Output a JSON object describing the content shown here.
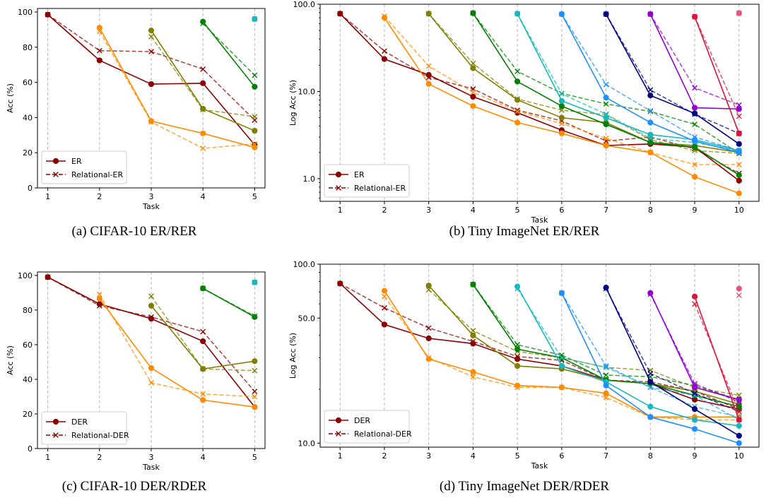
{
  "chart_data": [
    {
      "type": "line",
      "caption": "(a) CIFAR-10 ER/RER",
      "xlabel": "Task",
      "ylabel": "Acc (%)",
      "scale": "linear",
      "xlim": [
        0.8,
        5.2
      ],
      "ylim": [
        0,
        102
      ],
      "xticks": [
        1,
        2,
        3,
        4,
        5
      ],
      "yticks": [
        0,
        20,
        40,
        60,
        80,
        100
      ],
      "ytick_labels": [
        "0",
        "20",
        "40",
        "60",
        "80",
        "100"
      ],
      "legend": {
        "position": "lower-left",
        "solid": "ER",
        "dashed": "Relational-ER"
      },
      "grid": "vertical dashed",
      "series": [
        {
          "color": "#8b0000",
          "x": [
            1,
            2,
            3,
            4,
            5
          ],
          "solid": [
            98.5,
            72.5,
            59,
            59.5,
            24.5
          ],
          "dashed": [
            98.5,
            78,
            77.5,
            67.5,
            38.5
          ]
        },
        {
          "color": "#ff8c00",
          "x": [
            2,
            3,
            4,
            5
          ],
          "solid": [
            91,
            38,
            31,
            23
          ],
          "dashed": [
            89,
            37.5,
            22.5,
            25
          ]
        },
        {
          "color": "#808000",
          "x": [
            3,
            4,
            5
          ],
          "solid": [
            89.5,
            45,
            32.5
          ],
          "dashed": [
            86,
            44.5,
            40.5
          ]
        },
        {
          "color": "#008000",
          "x": [
            4,
            5
          ],
          "solid": [
            94.5,
            57.5
          ],
          "dashed": [
            93.5,
            64
          ]
        },
        {
          "color": "#17b8be",
          "x": [
            5
          ],
          "solid": [
            96
          ],
          "dashed": [
            96
          ]
        }
      ]
    },
    {
      "type": "line",
      "caption": "(b) Tiny ImageNet ER/RER",
      "xlabel": "Task",
      "ylabel": "Log Acc (%)",
      "scale": "log",
      "xlim": [
        0.55,
        10.45
      ],
      "ylim": [
        0.55,
        100
      ],
      "xticks": [
        1,
        2,
        3,
        4,
        5,
        6,
        7,
        8,
        9,
        10
      ],
      "yticks": [
        1,
        10,
        100
      ],
      "ytick_labels": [
        "1.0",
        "10.0",
        "100.0"
      ],
      "legend": {
        "position": "lower-left",
        "solid": "ER",
        "dashed": "Relational-ER"
      },
      "grid": "vertical dashed",
      "series": [
        {
          "color": "#8b0000",
          "x": [
            1,
            2,
            3,
            4,
            5,
            6,
            7,
            8,
            9,
            10
          ],
          "solid": [
            78,
            23.5,
            15.5,
            8.7,
            5.7,
            3.6,
            2.4,
            2.5,
            2.3,
            0.95
          ],
          "dashed": [
            78,
            29,
            14.5,
            10.7,
            6.1,
            4.6,
            2.7,
            3,
            2.2,
            1.15
          ]
        },
        {
          "color": "#ff8c00",
          "x": [
            2,
            3,
            4,
            5,
            6,
            7,
            8,
            9,
            10
          ],
          "solid": [
            70,
            12.2,
            6.8,
            4.4,
            3.3,
            2.4,
            2,
            1.05,
            0.68
          ],
          "dashed": [
            73,
            19.5,
            9.8,
            5.9,
            4.3,
            2.9,
            2,
            1.45,
            1.45
          ]
        },
        {
          "color": "#808000",
          "x": [
            3,
            4,
            5,
            6,
            7,
            8,
            9,
            10
          ],
          "solid": [
            78,
            18.5,
            8,
            5,
            4.4,
            2.6,
            2.4,
            2
          ],
          "dashed": [
            78,
            21,
            8.2,
            6.1,
            5.4,
            2.8,
            2.1,
            1.95
          ]
        },
        {
          "color": "#008000",
          "x": [
            4,
            5,
            6,
            7,
            8,
            9,
            10
          ],
          "solid": [
            79,
            13,
            6.8,
            4.2,
            2.6,
            2.3,
            1.1
          ],
          "dashed": [
            79,
            17,
            9.5,
            7.2,
            5.9,
            4.2,
            1.95
          ]
        },
        {
          "color": "#17b8be",
          "x": [
            5,
            6,
            7,
            8,
            9,
            10
          ],
          "solid": [
            78,
            7.8,
            5,
            3.2,
            2.8,
            2.1
          ],
          "dashed": [
            78,
            9.4,
            5.5,
            2.9,
            2.6,
            2.1
          ]
        },
        {
          "color": "#1e90ff",
          "x": [
            6,
            7,
            8,
            9,
            10
          ],
          "solid": [
            77,
            8.5,
            4.4,
            2.7,
            2
          ],
          "dashed": [
            77,
            12,
            6,
            3,
            2.1
          ]
        },
        {
          "color": "#000080",
          "x": [
            7,
            8,
            9,
            10
          ],
          "solid": [
            77,
            9,
            5.6,
            2.5
          ],
          "dashed": [
            77,
            10.4,
            5.5,
            3.3
          ]
        },
        {
          "color": "#9400d3",
          "x": [
            8,
            9,
            10
          ],
          "solid": [
            77,
            6.5,
            6.3
          ],
          "dashed": [
            77,
            11,
            7
          ]
        },
        {
          "color": "#dc143c",
          "x": [
            9,
            10
          ],
          "solid": [
            72,
            3.3
          ],
          "dashed": [
            72,
            5.2
          ]
        },
        {
          "color": "#e75480",
          "x": [
            10
          ],
          "solid": [
            79
          ],
          "dashed": [
            79
          ]
        }
      ]
    },
    {
      "type": "line",
      "caption": "(c) CIFAR-10 DER/RDER",
      "xlabel": "Task",
      "ylabel": "Acc (%)",
      "scale": "linear",
      "xlim": [
        0.8,
        5.2
      ],
      "ylim": [
        0,
        102
      ],
      "xticks": [
        1,
        2,
        3,
        4,
        5
      ],
      "yticks": [
        0,
        20,
        40,
        60,
        80,
        100
      ],
      "ytick_labels": [
        "0",
        "20",
        "40",
        "60",
        "80",
        "100"
      ],
      "legend": {
        "position": "lower-left",
        "solid": "DER",
        "dashed": "Relational-DER"
      },
      "grid": "vertical dashed",
      "series": [
        {
          "color": "#8b0000",
          "x": [
            1,
            2,
            3,
            4,
            5
          ],
          "solid": [
            99,
            83.5,
            75,
            62,
            24
          ],
          "dashed": [
            99,
            82.5,
            76,
            67.5,
            33
          ]
        },
        {
          "color": "#ff8c00",
          "x": [
            2,
            3,
            4,
            5
          ],
          "solid": [
            86.5,
            46.5,
            28,
            24
          ],
          "dashed": [
            89,
            38,
            31.5,
            30
          ]
        },
        {
          "color": "#808000",
          "x": [
            3,
            4,
            5
          ],
          "solid": [
            82.5,
            46,
            50.5
          ],
          "dashed": [
            88,
            46,
            45
          ]
        },
        {
          "color": "#008000",
          "x": [
            4,
            5
          ],
          "solid": [
            92.5,
            76
          ],
          "dashed": [
            92.5,
            76.5
          ]
        },
        {
          "color": "#17b8be",
          "x": [
            5
          ],
          "solid": [
            96
          ],
          "dashed": [
            96
          ]
        }
      ]
    },
    {
      "type": "line",
      "caption": "(d) Tiny ImageNet DER/RDER",
      "xlabel": "Task",
      "ylabel": "Log Acc (%)",
      "scale": "log",
      "xlim": [
        0.55,
        10.45
      ],
      "ylim": [
        9.5,
        100
      ],
      "xticks": [
        1,
        2,
        3,
        4,
        5,
        6,
        7,
        8,
        9,
        10
      ],
      "yticks": [
        10,
        50,
        100
      ],
      "ytick_labels": [
        "10.0",
        "50.0",
        "100.0"
      ],
      "legend": {
        "position": "lower-left",
        "solid": "DER",
        "dashed": "Relational-DER"
      },
      "grid": "vertical dashed",
      "series": [
        {
          "color": "#8b0000",
          "x": [
            1,
            2,
            3,
            4,
            5,
            6,
            7,
            8,
            9,
            10
          ],
          "solid": [
            78,
            46,
            38.5,
            36,
            29.5,
            27,
            22.5,
            21.5,
            17.5,
            15.5
          ],
          "dashed": [
            78,
            57,
            44,
            37,
            30.5,
            29,
            22.5,
            22,
            19.5,
            15.5
          ]
        },
        {
          "color": "#ff8c00",
          "x": [
            2,
            3,
            4,
            5,
            6,
            7,
            8,
            9,
            10
          ],
          "solid": [
            71,
            29.5,
            25,
            21,
            20.5,
            19,
            14,
            14,
            14
          ],
          "dashed": [
            66,
            30,
            23.5,
            20.5,
            20.5,
            18,
            14,
            13.5,
            13.5
          ]
        },
        {
          "color": "#808000",
          "x": [
            3,
            4,
            5,
            6,
            7,
            8,
            9,
            10
          ],
          "solid": [
            76,
            40,
            27,
            26,
            22.5,
            21.5,
            19.5,
            16.5
          ],
          "dashed": [
            72,
            42.5,
            32.5,
            30,
            26.5,
            25.5,
            20.5,
            18.5
          ]
        },
        {
          "color": "#008000",
          "x": [
            4,
            5,
            6,
            7,
            8,
            9,
            10
          ],
          "solid": [
            77,
            33.5,
            30,
            22.5,
            21.5,
            18.5,
            16
          ],
          "dashed": [
            77,
            35.5,
            31,
            24,
            23.5,
            21,
            17.5
          ]
        },
        {
          "color": "#17b8be",
          "x": [
            5,
            6,
            7,
            8,
            9,
            10
          ],
          "solid": [
            75,
            27,
            22,
            16,
            13.5,
            12.5
          ],
          "dashed": [
            73,
            30,
            26.5,
            20.5,
            16,
            14
          ]
        },
        {
          "color": "#1e90ff",
          "x": [
            6,
            7,
            8,
            9,
            10
          ],
          "solid": [
            69,
            21,
            14,
            12,
            10
          ],
          "dashed": [
            69,
            27,
            20.5,
            18.5,
            13.5
          ]
        },
        {
          "color": "#000080",
          "x": [
            7,
            8,
            9,
            10
          ],
          "solid": [
            74,
            22,
            15.5,
            11
          ],
          "dashed": [
            73,
            24.5,
            19,
            15
          ]
        },
        {
          "color": "#9400d3",
          "x": [
            8,
            9,
            10
          ],
          "solid": [
            69,
            20.5,
            17.5
          ],
          "dashed": [
            68,
            21.5,
            17
          ]
        },
        {
          "color": "#dc143c",
          "x": [
            9,
            10
          ],
          "solid": [
            66,
            13.5
          ],
          "dashed": [
            60,
            15
          ]
        },
        {
          "color": "#e75480",
          "x": [
            10
          ],
          "solid": [
            73
          ],
          "dashed": [
            67
          ]
        }
      ]
    }
  ]
}
